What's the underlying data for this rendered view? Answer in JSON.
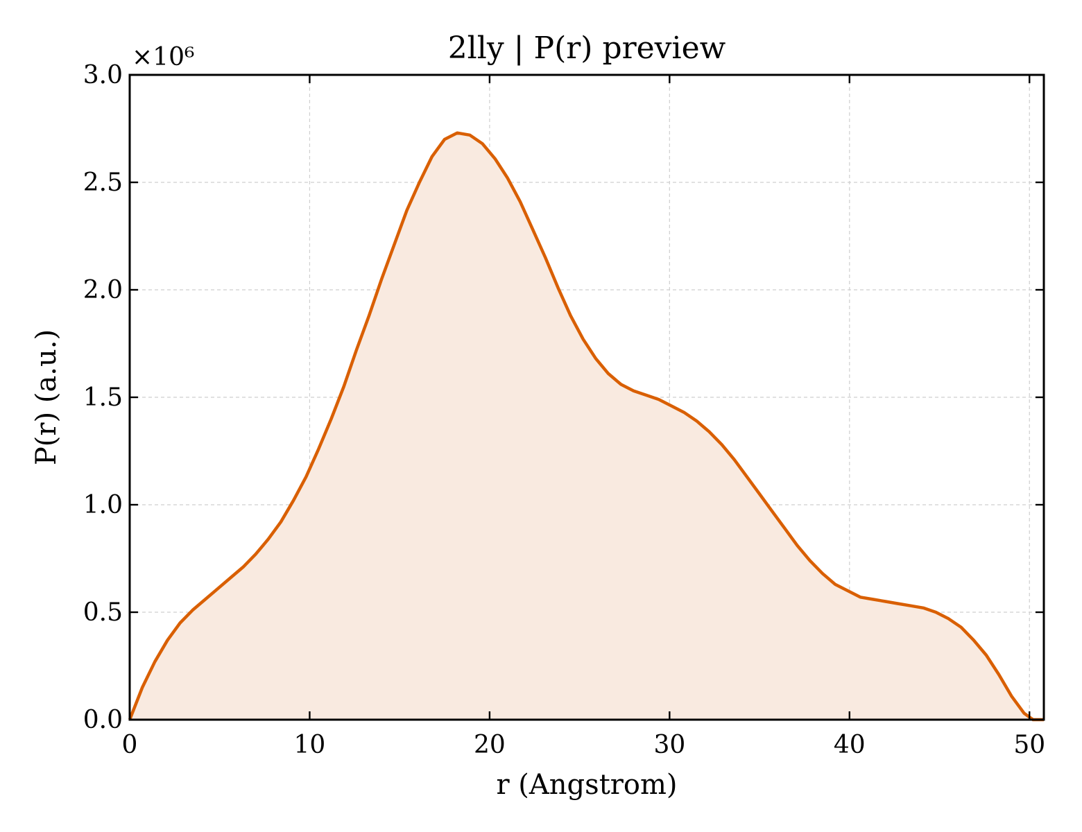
{
  "chart_data": {
    "type": "area",
    "title": "2lly | P(r) preview",
    "xlabel": "r (Angstrom)",
    "ylabel": "P(r) (a.u.)",
    "y_multiplier_label": "×10⁶",
    "xlim": [
      0,
      50.8
    ],
    "ylim": [
      0,
      3.0
    ],
    "x_ticks": [
      0,
      10,
      20,
      30,
      40,
      50
    ],
    "y_ticks": [
      0.0,
      0.5,
      1.0,
      1.5,
      2.0,
      2.5,
      3.0
    ],
    "x_tick_labels": [
      "0",
      "10",
      "20",
      "30",
      "40",
      "50"
    ],
    "y_tick_labels": [
      "0.0",
      "0.5",
      "1.0",
      "1.5",
      "2.0",
      "2.5",
      "3.0"
    ],
    "grid": true,
    "line_color": "#d95f02",
    "fill_color": "#f9eae0",
    "series": [
      {
        "x": [
          0,
          0.7,
          1.4,
          2.1,
          2.8,
          3.5,
          4.2,
          4.9,
          5.6,
          6.3,
          7.0,
          7.7,
          8.4,
          9.1,
          9.8,
          10.5,
          11.2,
          11.9,
          12.6,
          13.3,
          14.0,
          14.7,
          15.4,
          16.1,
          16.8,
          17.5,
          18.2,
          18.9,
          19.6,
          20.3,
          21.0,
          21.7,
          22.4,
          23.1,
          23.8,
          24.5,
          25.2,
          25.9,
          26.6,
          27.3,
          28.0,
          28.7,
          29.4,
          30.1,
          30.8,
          31.5,
          32.2,
          32.9,
          33.6,
          34.3,
          35.0,
          35.7,
          36.4,
          37.1,
          37.8,
          38.5,
          39.2,
          39.9,
          40.6,
          41.3,
          42.0,
          42.7,
          43.4,
          44.1,
          44.8,
          45.5,
          46.2,
          46.9,
          47.6,
          48.3,
          49.0,
          49.7,
          50.2,
          50.8
        ],
        "y": [
          0.0,
          0.15,
          0.27,
          0.37,
          0.45,
          0.51,
          0.56,
          0.61,
          0.66,
          0.71,
          0.77,
          0.84,
          0.92,
          1.02,
          1.13,
          1.26,
          1.4,
          1.55,
          1.72,
          1.88,
          2.05,
          2.21,
          2.37,
          2.5,
          2.62,
          2.7,
          2.73,
          2.72,
          2.68,
          2.61,
          2.52,
          2.41,
          2.28,
          2.15,
          2.01,
          1.88,
          1.77,
          1.68,
          1.61,
          1.56,
          1.53,
          1.51,
          1.49,
          1.46,
          1.43,
          1.39,
          1.34,
          1.28,
          1.21,
          1.13,
          1.05,
          0.97,
          0.89,
          0.81,
          0.74,
          0.68,
          0.63,
          0.6,
          0.57,
          0.56,
          0.55,
          0.54,
          0.53,
          0.52,
          0.5,
          0.47,
          0.43,
          0.37,
          0.3,
          0.21,
          0.11,
          0.03,
          0.0,
          0.0
        ]
      }
    ]
  }
}
